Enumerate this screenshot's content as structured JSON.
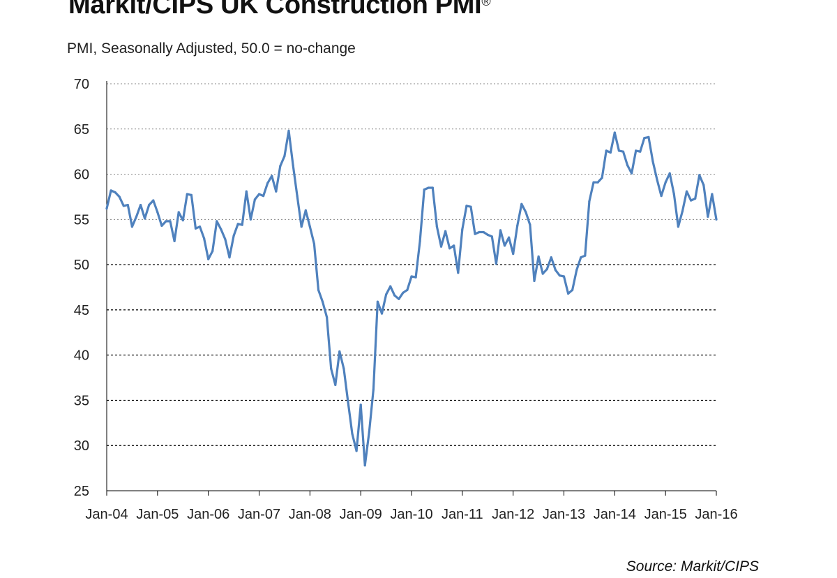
{
  "title": "Markit/CIPS UK Construction PMI",
  "title_mark": "®",
  "subtitle": "PMI, Seasonally Adjusted, 50.0 = no-change",
  "source": "Source: Markit/CIPS",
  "colors": {
    "line": "#4f81bd",
    "grid": "#000000",
    "axis": "#000000"
  },
  "chart_data": {
    "type": "line",
    "title": "Markit/CIPS UK Construction PMI",
    "subtitle": "PMI, Seasonally Adjusted, 50.0 = no-change",
    "xlabel": "",
    "ylabel": "",
    "ylim": [
      25,
      70
    ],
    "yticks": [
      70,
      65,
      60,
      55,
      50,
      45,
      40,
      35,
      30,
      25
    ],
    "xlim": [
      "2004-01",
      "2016-01"
    ],
    "xticks": [
      "Jan-04",
      "Jan-05",
      "Jan-06",
      "Jan-07",
      "Jan-08",
      "Jan-09",
      "Jan-10",
      "Jan-11",
      "Jan-12",
      "Jan-13",
      "Jan-14",
      "Jan-15",
      "Jan-16"
    ],
    "grid": "horizontal dashed",
    "legend": "none",
    "series": [
      {
        "frequency": "monthly",
        "start": "2004-01",
        "values": [
          56.2,
          58.2,
          58.0,
          57.5,
          56.5,
          56.6,
          54.2,
          55.3,
          56.6,
          55.1,
          56.6,
          57.1,
          55.8,
          54.3,
          54.8,
          54.8,
          52.6,
          55.8,
          54.9,
          57.8,
          57.7,
          54.0,
          54.2,
          52.9,
          50.6,
          51.5,
          54.8,
          53.9,
          52.8,
          50.8,
          53.2,
          54.5,
          54.4,
          58.1,
          55.0,
          57.2,
          57.8,
          57.6,
          59.0,
          59.8,
          58.1,
          60.9,
          62.0,
          64.8,
          61.0,
          57.6,
          54.2,
          56.0,
          54.2,
          52.3,
          47.2,
          45.9,
          44.2,
          38.5,
          36.7,
          40.4,
          38.5,
          34.8,
          31.3,
          29.4,
          34.5,
          27.8,
          31.5,
          36.2,
          45.9,
          44.6,
          46.7,
          47.6,
          46.6,
          46.2,
          46.9,
          47.2,
          48.7,
          48.6,
          52.6,
          58.3,
          58.5,
          58.5,
          54.2,
          52.0,
          53.7,
          51.8,
          52.1,
          49.1,
          53.9,
          56.5,
          56.4,
          53.4,
          53.6,
          53.6,
          53.3,
          53.1,
          50.1,
          53.8,
          52.1,
          53.0,
          51.2,
          54.3,
          56.7,
          55.8,
          54.4,
          48.2,
          50.9,
          49.0,
          49.5,
          50.8,
          49.4,
          48.8,
          48.7,
          46.8,
          47.2,
          49.4,
          50.8,
          51.0,
          57.0,
          59.1,
          59.1,
          59.6,
          62.6,
          62.4,
          64.6,
          62.6,
          62.5,
          61.0,
          60.1,
          62.6,
          62.5,
          64.0,
          64.1,
          61.4,
          59.4,
          57.6,
          59.1,
          60.1,
          57.8,
          54.2,
          55.9,
          58.1,
          57.1,
          57.3,
          59.9,
          58.8,
          55.3,
          57.8,
          55.0
        ]
      }
    ]
  }
}
